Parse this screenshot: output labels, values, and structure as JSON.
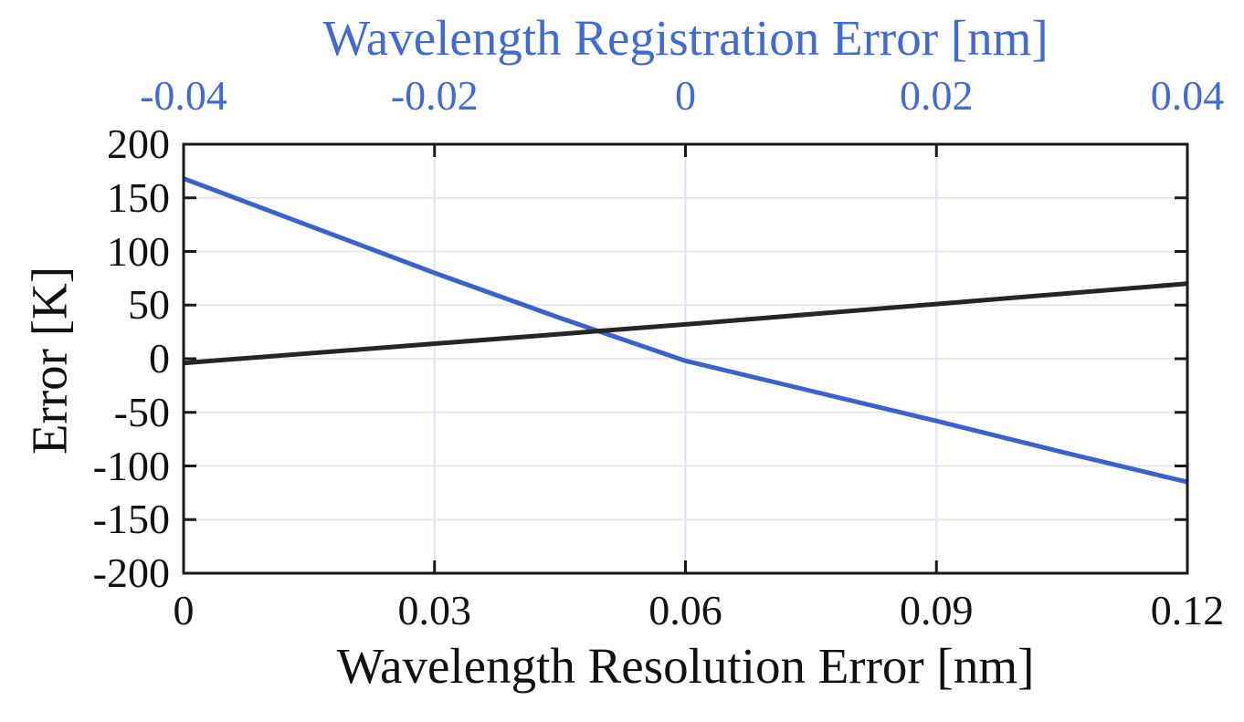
{
  "figure": {
    "background": "#ffffff",
    "colors": {
      "accent_blue_text": "#3F6AD8",
      "blue_line": "#3A62CE",
      "black_line": "#262626",
      "axis_frame": "#1a1a1a",
      "text_black": "#111111",
      "grid_horizontal": "#e8e8e8",
      "grid_vertical": "#d9e2f6"
    }
  },
  "chart": {
    "top_axis": {
      "label": "Wavelength Registration Error [nm]",
      "tick_labels": [
        "-0.04",
        "-0.02",
        "0",
        "0.02",
        "0.04"
      ],
      "tick_values": [
        -0.04,
        -0.02,
        0,
        0.02,
        0.04
      ],
      "interior_tick_values": [
        -0.02,
        0,
        0.02
      ]
    },
    "bottom_axis": {
      "label": "Wavelength Resolution Error [nm]",
      "tick_labels": [
        "0",
        "0.03",
        "0.06",
        "0.09",
        "0.12"
      ],
      "tick_values": [
        0,
        0.03,
        0.06,
        0.09,
        0.12
      ],
      "interior_tick_values": [
        0.03,
        0.06,
        0.09
      ]
    },
    "y_axis": {
      "label": "Error [K]",
      "tick_labels": [
        "200",
        "150",
        "100",
        "50",
        "0",
        "-50",
        "-100",
        "-150",
        "-200"
      ],
      "tick_values": [
        200,
        150,
        100,
        50,
        0,
        -50,
        -100,
        -150,
        -200
      ],
      "interior_tick_values": [
        150,
        100,
        50,
        0,
        -50,
        -100,
        -150
      ]
    }
  },
  "chart_data": {
    "type": "line",
    "title": "",
    "ylabel": "Error [K]",
    "ylim": [
      -200,
      200
    ],
    "top_xlabel": "Wavelength Registration Error [nm]",
    "top_xlim": [
      -0.04,
      0.04
    ],
    "bottom_xlabel": "Wavelength Resolution Error [nm]",
    "bottom_xlim": [
      0,
      0.12
    ],
    "grid": true,
    "legend": "none",
    "series": [
      {
        "name": "Wavelength Registration Error",
        "axis": "top",
        "color": "#3A62CE",
        "x": [
          -0.04,
          -0.03,
          -0.02,
          -0.01,
          0,
          0.01,
          0.02,
          0.03,
          0.04
        ],
        "y": [
          168,
          124,
          80,
          38,
          -2,
          -30,
          -58,
          -87,
          -115
        ]
      },
      {
        "name": "Wavelength Resolution Error",
        "axis": "bottom",
        "color": "#262626",
        "x": [
          0,
          0.03,
          0.06,
          0.09,
          0.12
        ],
        "y": [
          -4,
          14,
          32,
          51,
          70
        ]
      }
    ]
  }
}
